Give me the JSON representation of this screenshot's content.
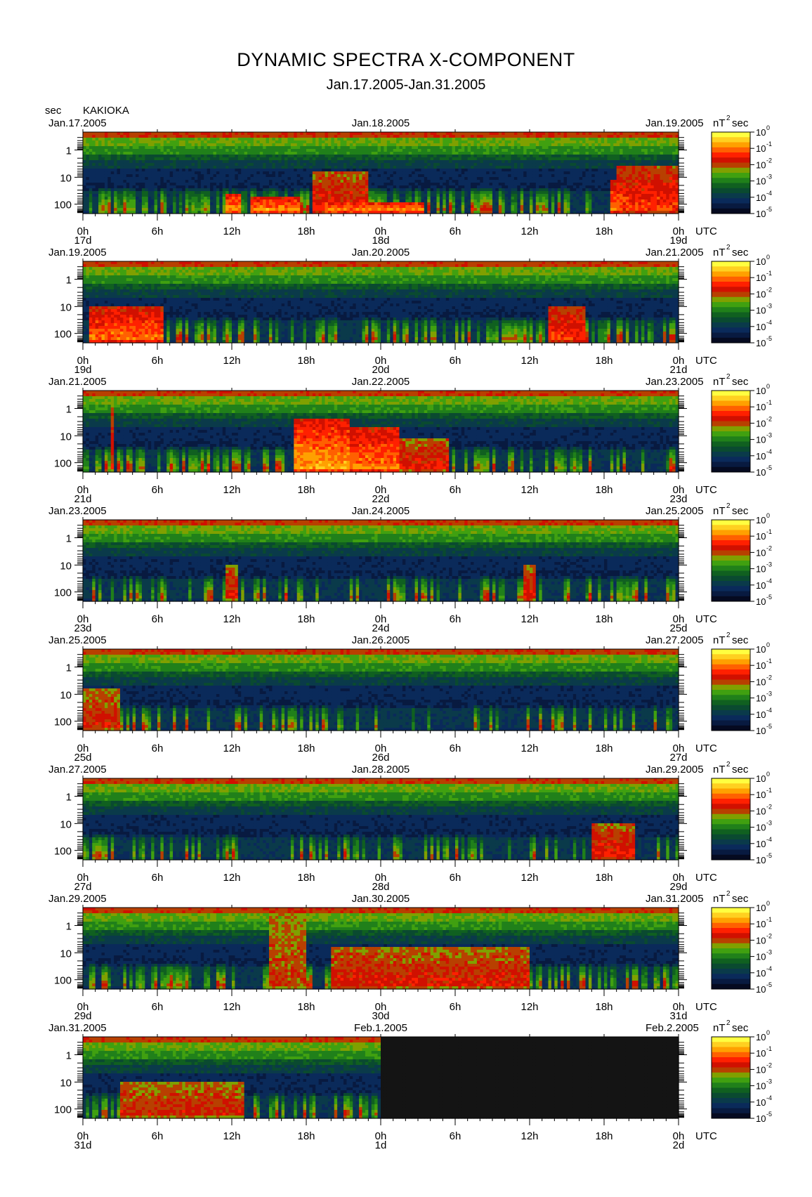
{
  "title": "DYNAMIC SPECTRA X-COMPONENT",
  "subtitle": "Jan.17.2005-Jan.31.2005",
  "unit_label": "sec",
  "station": "KAKIOKA",
  "colorbar": {
    "unit": "nT",
    "unit_exp": "2",
    "unit_suffix": "sec",
    "labels": [
      {
        "base": "10",
        "exp": "0"
      },
      {
        "base": "10",
        "exp": "-1"
      },
      {
        "base": "10",
        "exp": "-2"
      },
      {
        "base": "10",
        "exp": "-3"
      },
      {
        "base": "10",
        "exp": "-4"
      },
      {
        "base": "10",
        "exp": "-5"
      }
    ],
    "colors": [
      "#ffff40",
      "#ffd020",
      "#ffa000",
      "#ff6000",
      "#ff2000",
      "#d01000",
      "#b84000",
      "#80a000",
      "#40a010",
      "#20801a",
      "#106020",
      "#0a4a30",
      "#0a3a4a",
      "#0a2a5a",
      "#081a40",
      "#050a20"
    ]
  },
  "colors": {
    "no_data": "#141414",
    "background": "#ffffff"
  },
  "chart_data": {
    "type": "heatmap",
    "description_axes": {
      "x": "time (UTC)",
      "y": "period (sec), log scale, inverted",
      "color": "spectral power, log scale"
    },
    "y_ticks": [
      "1",
      "10",
      "100"
    ],
    "x_tick_labels": [
      "0h",
      "6h",
      "12h",
      "18h",
      "0h",
      "6h",
      "12h",
      "18h",
      "0h"
    ],
    "x_unit": "UTC",
    "color_range": [
      1e-05,
      1
    ],
    "panels": [
      {
        "left_date": "Jan.17.2005",
        "mid_date": "Jan.18.2005",
        "right_date": "Jan.19.2005",
        "day_labels": [
          "17d",
          "18d",
          "19d"
        ],
        "events": [
          [
            11.5,
            12.8,
            0.75,
            1.0
          ],
          [
            13.5,
            17.5,
            0.8,
            1.0
          ],
          [
            19.5,
            27.5,
            0.85,
            1.0
          ],
          [
            42.5,
            43.5,
            0.6,
            0.9
          ],
          [
            43.0,
            48.0,
            0.4,
            0.7
          ],
          [
            18.5,
            23.0,
            0.5,
            0.6
          ]
        ],
        "activity": 0.55,
        "no_data_from": null
      },
      {
        "left_date": "Jan.19.2005",
        "mid_date": "Jan.20.2005",
        "right_date": "Jan.21.2005",
        "day_labels": [
          "19d",
          "20d",
          "21d"
        ],
        "events": [
          [
            0.5,
            6.5,
            0.55,
            0.85
          ],
          [
            37.5,
            40.5,
            0.55,
            0.7
          ]
        ],
        "activity": 0.45,
        "no_data_from": null
      },
      {
        "left_date": "Jan.21.2005",
        "mid_date": "Jan.22.2005",
        "right_date": "Jan.23.2005",
        "day_labels": [
          "21d",
          "22d",
          "23d"
        ],
        "events": [
          [
            17.0,
            21.5,
            0.35,
            1.0
          ],
          [
            21.5,
            25.5,
            0.45,
            0.9
          ],
          [
            25.5,
            29.5,
            0.6,
            0.6
          ],
          [
            2.3,
            2.6,
            0.0,
            0.5
          ]
        ],
        "activity": 0.5,
        "no_data_from": null
      },
      {
        "left_date": "Jan.23.2005",
        "mid_date": "Jan.24.2005",
        "right_date": "Jan.25.2005",
        "day_labels": [
          "23d",
          "24d",
          "25d"
        ],
        "events": [
          [
            11.5,
            12.5,
            0.55,
            0.55
          ],
          [
            35.5,
            36.5,
            0.55,
            0.6
          ]
        ],
        "activity": 0.35,
        "no_data_from": null
      },
      {
        "left_date": "Jan.25.2005",
        "mid_date": "Jan.26.2005",
        "right_date": "Jan.27.2005",
        "day_labels": [
          "25d",
          "26d",
          "27d"
        ],
        "events": [
          [
            0.0,
            3.0,
            0.5,
            0.5
          ]
        ],
        "activity": 0.25,
        "no_data_from": null
      },
      {
        "left_date": "Jan.27.2005",
        "mid_date": "Jan.28.2005",
        "right_date": "Jan.29.2005",
        "day_labels": [
          "27d",
          "28d",
          "29d"
        ],
        "events": [
          [
            41.0,
            44.5,
            0.55,
            0.6
          ]
        ],
        "activity": 0.3,
        "no_data_from": null
      },
      {
        "left_date": "Jan.29.2005",
        "mid_date": "Jan.30.2005",
        "right_date": "Jan.31.2005",
        "day_labels": [
          "29d",
          "30d",
          "31d"
        ],
        "events": [
          [
            20.0,
            36.0,
            0.5,
            0.55
          ],
          [
            15.0,
            18.0,
            0.0,
            0.4
          ]
        ],
        "activity": 0.45,
        "no_data_from": null
      },
      {
        "left_date": "Jan.31.2005",
        "mid_date": "Feb.1.2005",
        "right_date": "Feb.2.2005",
        "day_labels": [
          "31d",
          "1d",
          "2d"
        ],
        "events": [
          [
            3.0,
            13.0,
            0.55,
            0.5
          ]
        ],
        "activity": 0.4,
        "no_data_from": 24
      }
    ]
  }
}
